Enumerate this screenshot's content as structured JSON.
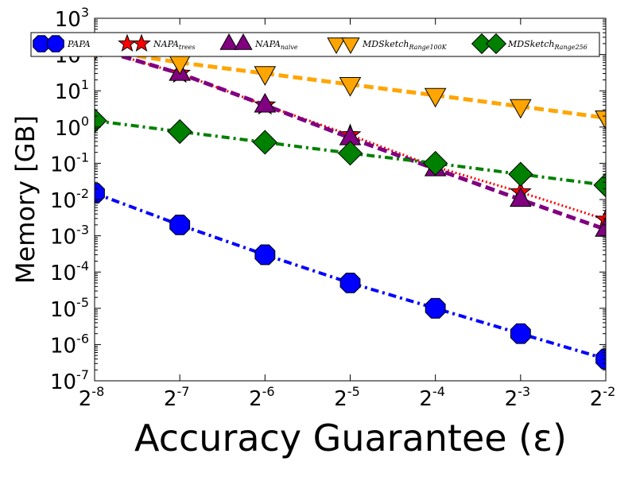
{
  "chart_data": {
    "type": "line",
    "xlabel": "Accuracy Guarantee (ε)",
    "ylabel": "Memory [GB]",
    "x_scale": "log2",
    "y_scale": "log10",
    "x": [
      0.00390625,
      0.0078125,
      0.015625,
      0.03125,
      0.0625,
      0.125,
      0.25
    ],
    "x_tick_labels": [
      {
        "base": "2",
        "exp": "-8"
      },
      {
        "base": "2",
        "exp": "-7"
      },
      {
        "base": "2",
        "exp": "-6"
      },
      {
        "base": "2",
        "exp": "-5"
      },
      {
        "base": "2",
        "exp": "-4"
      },
      {
        "base": "2",
        "exp": "-3"
      },
      {
        "base": "2",
        "exp": "-2"
      }
    ],
    "y_ticks": [
      1e-07,
      1e-06,
      1e-05,
      0.0001,
      0.001,
      0.01,
      0.1,
      1,
      10,
      100,
      1000
    ],
    "y_tick_labels": [
      {
        "base": "10",
        "exp": "-7"
      },
      {
        "base": "10",
        "exp": "-6"
      },
      {
        "base": "10",
        "exp": "-5"
      },
      {
        "base": "10",
        "exp": "-4"
      },
      {
        "base": "10",
        "exp": "-3"
      },
      {
        "base": "10",
        "exp": "-2"
      },
      {
        "base": "10",
        "exp": "-1"
      },
      {
        "base": "10",
        "exp": "0"
      },
      {
        "base": "10",
        "exp": "1"
      },
      {
        "base": "10",
        "exp": "2"
      },
      {
        "base": "10",
        "exp": "3"
      }
    ],
    "xlim": [
      0.00390625,
      0.25
    ],
    "ylim": [
      1e-07,
      1000
    ],
    "grid": false,
    "legend_position": "top",
    "series": [
      {
        "name": "PAPA",
        "sub": "",
        "color": "#0000ff",
        "marker": "octagon",
        "linestyle": "dashdot",
        "values": [
          0.015,
          0.002,
          0.0003,
          5e-05,
          1e-05,
          2e-06,
          4e-07
        ]
      },
      {
        "name": "NAPA",
        "sub": "trees",
        "color": "#ff0000",
        "marker": "star",
        "linestyle": "dotted",
        "values": [
          150,
          30,
          4,
          0.6,
          0.08,
          0.016,
          0.0028
        ]
      },
      {
        "name": "NAPA",
        "sub": "naive",
        "color": "#800080",
        "marker": "triangle-up",
        "linestyle": "dashed",
        "values": [
          150,
          30,
          4,
          0.5,
          0.07,
          0.01,
          0.0015
        ]
      },
      {
        "name": "MDSketch",
        "sub": "Range100K",
        "color": "#ffa500",
        "marker": "triangle-down",
        "linestyle": "dashed",
        "values": [
          140,
          60,
          30,
          15,
          7.5,
          3.7,
          1.8
        ]
      },
      {
        "name": "MDSketch",
        "sub": "Range256",
        "color": "#008000",
        "marker": "diamond",
        "linestyle": "dashdot",
        "values": [
          1.5,
          0.75,
          0.38,
          0.19,
          0.1,
          0.05,
          0.025
        ]
      }
    ]
  }
}
